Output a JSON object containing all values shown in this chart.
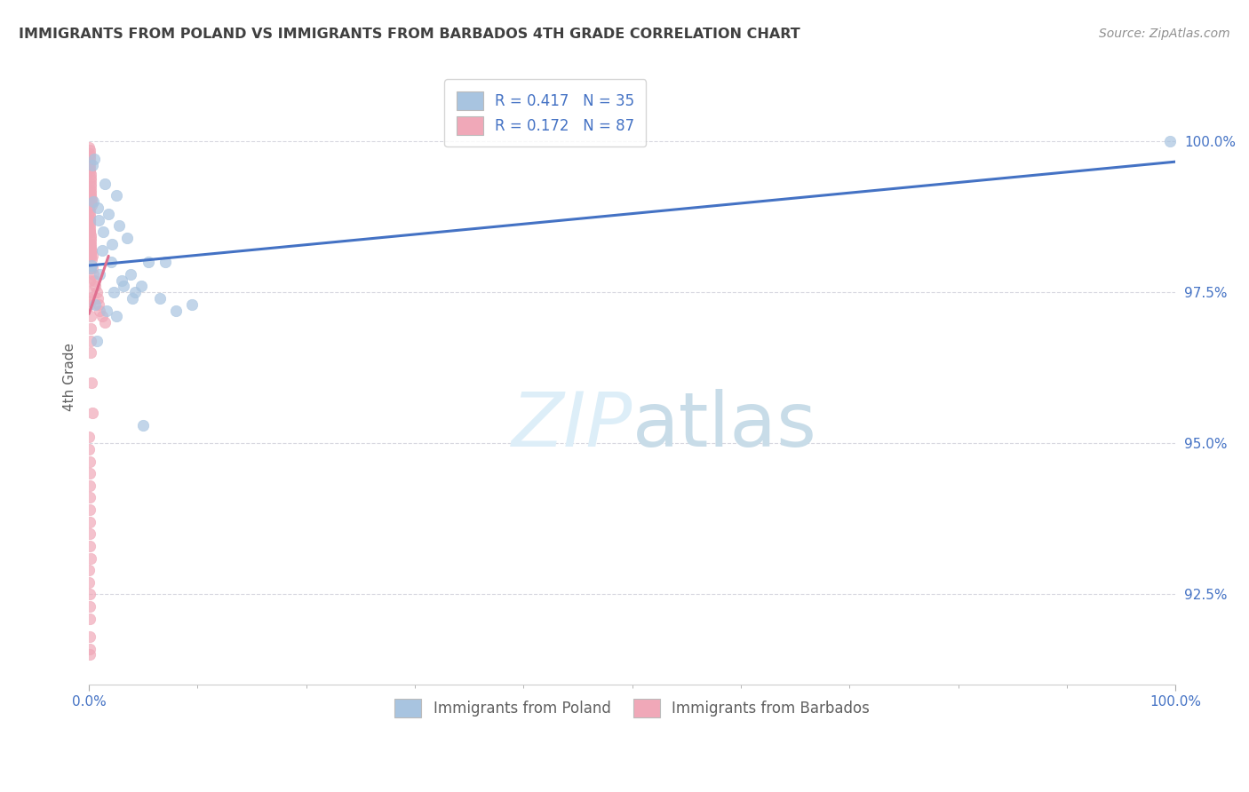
{
  "title": "IMMIGRANTS FROM POLAND VS IMMIGRANTS FROM BARBADOS 4TH GRADE CORRELATION CHART",
  "source": "Source: ZipAtlas.com",
  "ylabel": "4th Grade",
  "ylabel_values": [
    92.5,
    95.0,
    97.5,
    100.0
  ],
  "xlim": [
    0.0,
    100.0
  ],
  "ylim": [
    91.0,
    101.2
  ],
  "legend_labels": [
    "Immigrants from Poland",
    "Immigrants from Barbados"
  ],
  "legend_R": [
    "R = 0.417",
    "R = 0.172"
  ],
  "legend_N": [
    "N = 35",
    "N = 87"
  ],
  "poland_color": "#a8c4e0",
  "barbados_color": "#f0a8b8",
  "poland_line_color": "#4472c4",
  "barbados_line_color": "#e07090",
  "title_color": "#404040",
  "source_color": "#909090",
  "axis_label_color": "#606060",
  "tick_color": "#4472c4",
  "grid_color": "#d8d8e0",
  "watermark_color": "#ddeef8",
  "marker_size": 80,
  "poland_x": [
    0.15,
    0.25,
    0.3,
    0.5,
    0.8,
    0.9,
    1.0,
    1.2,
    1.3,
    1.5,
    1.6,
    1.8,
    2.0,
    2.1,
    2.3,
    2.5,
    2.8,
    3.0,
    3.2,
    3.5,
    3.8,
    4.0,
    4.2,
    4.8,
    5.0,
    5.5,
    6.5,
    7.0,
    8.0,
    9.5,
    0.4,
    0.6,
    0.7,
    2.5,
    99.5
  ],
  "poland_y": [
    97.9,
    97.95,
    99.6,
    99.7,
    98.9,
    98.7,
    97.8,
    98.2,
    98.5,
    99.3,
    97.2,
    98.8,
    98.0,
    98.3,
    97.5,
    99.1,
    98.6,
    97.7,
    97.6,
    98.4,
    97.8,
    97.4,
    97.5,
    97.6,
    95.3,
    98.0,
    97.4,
    98.0,
    97.2,
    97.3,
    99.0,
    97.3,
    96.7,
    97.1,
    100.0
  ],
  "barbados_x": [
    0.03,
    0.04,
    0.05,
    0.06,
    0.07,
    0.08,
    0.09,
    0.1,
    0.11,
    0.12,
    0.13,
    0.14,
    0.15,
    0.16,
    0.17,
    0.18,
    0.19,
    0.2,
    0.21,
    0.22,
    0.03,
    0.04,
    0.05,
    0.06,
    0.07,
    0.08,
    0.09,
    0.1,
    0.11,
    0.12,
    0.13,
    0.14,
    0.15,
    0.16,
    0.17,
    0.18,
    0.19,
    0.2,
    0.25,
    0.3,
    0.35,
    0.4,
    0.5,
    0.6,
    0.7,
    0.8,
    0.9,
    1.0,
    1.2,
    1.5,
    0.02,
    0.03,
    0.04,
    0.05,
    0.06,
    0.07,
    0.08,
    0.09,
    0.1,
    0.11,
    0.12,
    0.13,
    0.14,
    0.15,
    0.25,
    0.3,
    0.02,
    0.03,
    0.04,
    0.05,
    0.06,
    0.07,
    0.08,
    0.09,
    0.1,
    0.11,
    0.12,
    0.02,
    0.03,
    0.04,
    0.05,
    0.06,
    0.07,
    0.08,
    0.09,
    0.02,
    0.03
  ],
  "barbados_y": [
    99.9,
    99.85,
    99.8,
    99.75,
    99.7,
    99.65,
    99.6,
    99.55,
    99.5,
    99.45,
    99.4,
    99.35,
    99.3,
    99.25,
    99.2,
    99.15,
    99.1,
    99.05,
    99.0,
    98.95,
    98.9,
    98.85,
    98.8,
    98.75,
    98.7,
    98.65,
    98.6,
    98.55,
    98.5,
    98.45,
    98.4,
    98.35,
    98.3,
    98.25,
    98.2,
    98.15,
    98.1,
    98.05,
    98.2,
    98.1,
    97.9,
    97.8,
    97.7,
    97.6,
    97.5,
    97.4,
    97.3,
    97.2,
    97.1,
    97.0,
    99.2,
    99.0,
    98.7,
    98.5,
    98.3,
    98.1,
    97.9,
    97.7,
    97.5,
    97.3,
    97.1,
    96.9,
    96.7,
    96.5,
    96.0,
    95.5,
    95.1,
    94.9,
    94.7,
    94.5,
    94.3,
    94.1,
    93.9,
    93.7,
    93.5,
    93.3,
    93.1,
    92.9,
    92.7,
    92.5,
    92.3,
    92.1,
    91.8,
    91.6,
    91.5,
    97.35,
    97.4
  ]
}
